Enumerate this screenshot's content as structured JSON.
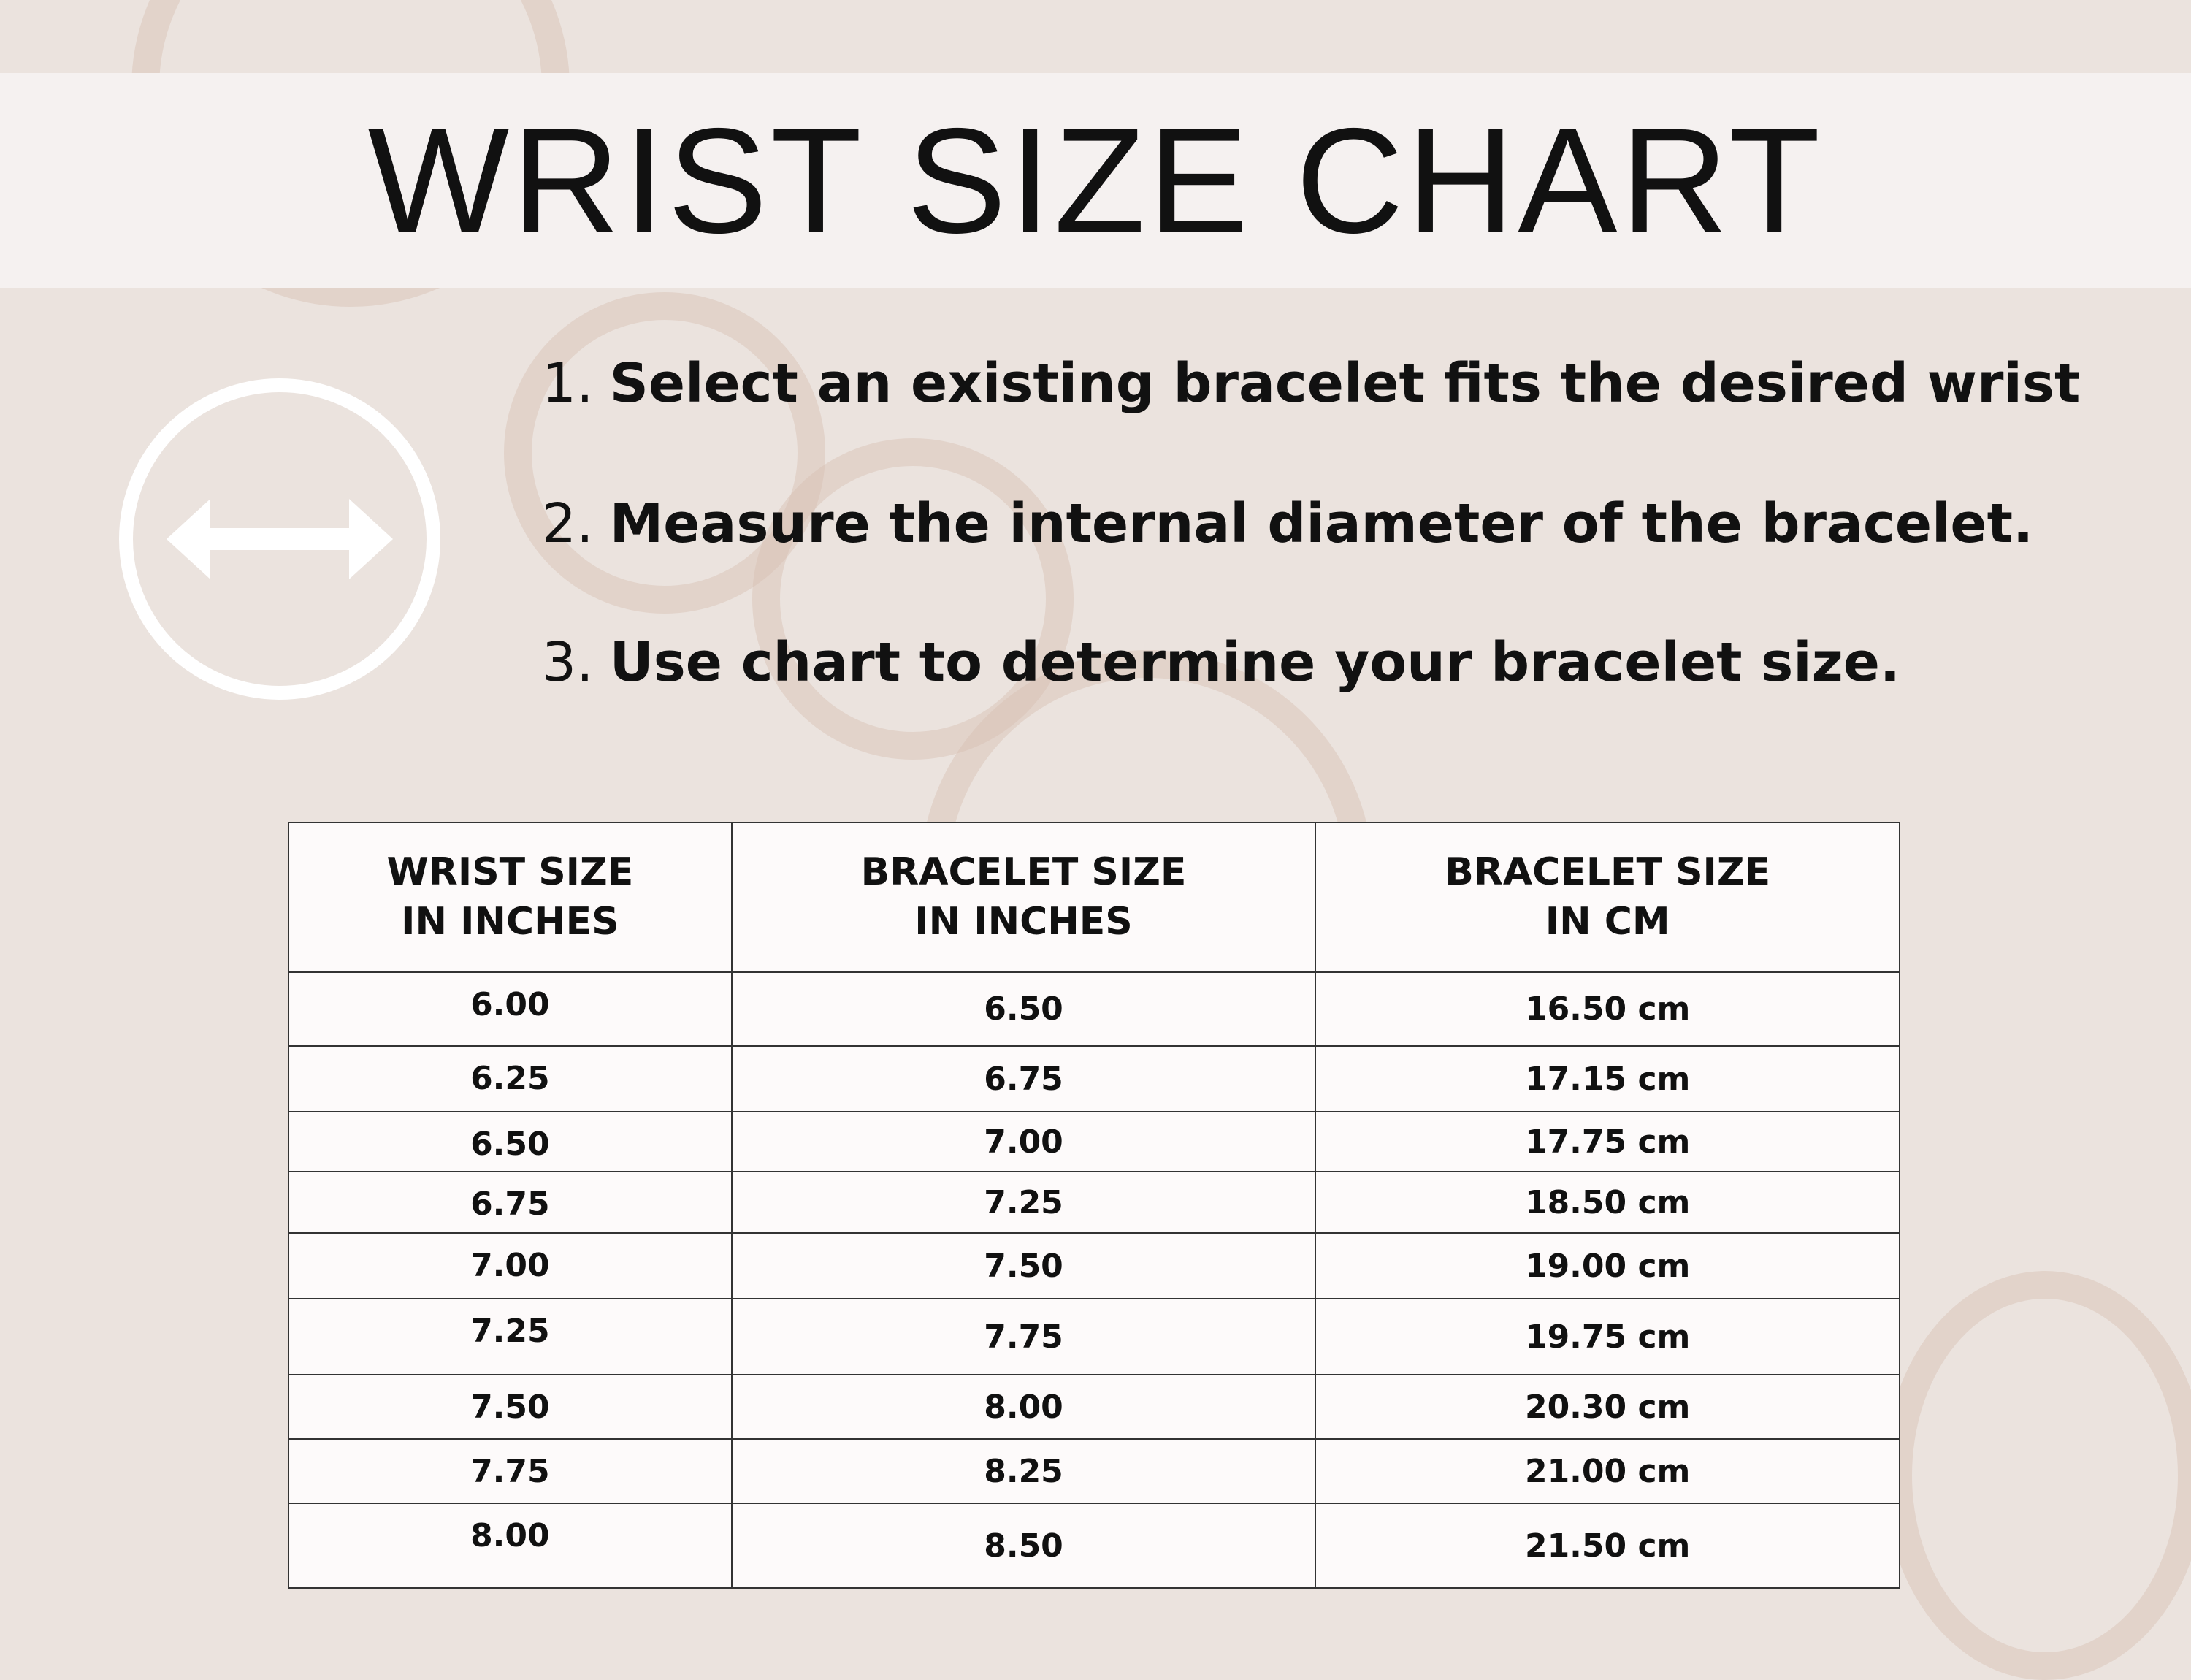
{
  "title": "WRIST SIZE CHART",
  "icon": "horizontal-double-arrow-in-circle",
  "colors": {
    "background": "#ebe3de",
    "banner": "#f5f1f0",
    "icon": "#ffffff",
    "text": "#111111"
  },
  "steps": [
    {
      "num": "1.",
      "text": "Select an existing bracelet fits the desired wrist"
    },
    {
      "num": "2.",
      "text": "Measure the internal diameter of the bracelet."
    },
    {
      "num": "3.",
      "text": "Use chart to determine your bracelet size."
    }
  ],
  "table": {
    "headers": [
      {
        "line1": "WRIST SIZE",
        "line2": "IN INCHES"
      },
      {
        "line1": "BRACELET SIZE",
        "line2": "IN INCHES"
      },
      {
        "line1": "BRACELET SIZE",
        "line2": "IN CM"
      }
    ],
    "rows": [
      [
        "6.00",
        "6.50",
        "16.50 cm"
      ],
      [
        "6.25",
        "6.75",
        "17.15 cm"
      ],
      [
        "6.50",
        "7.00",
        "17.75 cm"
      ],
      [
        "6.75",
        "7.25",
        "18.50 cm"
      ],
      [
        "7.00",
        "7.50",
        "19.00 cm"
      ],
      [
        "7.25",
        "7.75",
        "19.75 cm"
      ],
      [
        "7.50",
        "8.00",
        "20.30 cm"
      ],
      [
        "7.75",
        "8.25",
        "21.00 cm"
      ],
      [
        "8.00",
        "8.50",
        "21.50 cm"
      ]
    ]
  }
}
